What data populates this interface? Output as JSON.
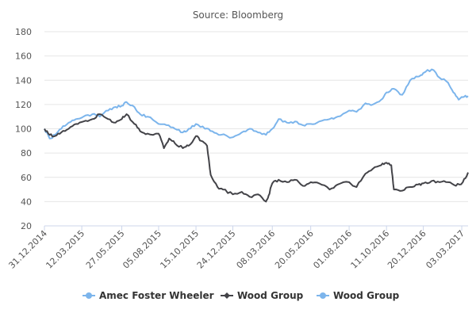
{
  "chart_data": {
    "type": "line",
    "title": "Source: Bloomberg",
    "ylim": [
      20,
      180
    ],
    "y_ticks": [
      "20",
      "40",
      "60",
      "80",
      "100",
      "120",
      "140",
      "160",
      "180"
    ],
    "x_tick_labels": [
      "31.12.2014",
      "12.03.2015",
      "27.05.2015",
      "05.08.2015",
      "15.10.2015",
      "24.12.2015",
      "08.03.2016",
      "20.05.2016",
      "01.08.2016",
      "11.10.2016",
      "20.12.2016",
      "03.03.2017"
    ],
    "x_range": [
      "2014-12-31",
      "2017-03-15"
    ],
    "grid": true,
    "legend_position": "bottom",
    "legend": [
      "Amec Foster Wheeler",
      "Wood Group",
      "Wood Group"
    ],
    "series": [
      {
        "name": "Amec Foster Wheeler",
        "color": "#7cb5ec",
        "points": [
          [
            "2014-12-31",
            100
          ],
          [
            "2015-01-10",
            92
          ],
          [
            "2015-01-20",
            95
          ],
          [
            "2015-02-01",
            100
          ],
          [
            "2015-02-15",
            105
          ],
          [
            "2015-03-01",
            108
          ],
          [
            "2015-03-15",
            110
          ],
          [
            "2015-04-01",
            112
          ],
          [
            "2015-04-15",
            110
          ],
          [
            "2015-05-01",
            115
          ],
          [
            "2015-05-15",
            118
          ],
          [
            "2015-05-27",
            119
          ],
          [
            "2015-06-05",
            122
          ],
          [
            "2015-06-20",
            118
          ],
          [
            "2015-07-01",
            112
          ],
          [
            "2015-07-15",
            110
          ],
          [
            "2015-08-05",
            104
          ],
          [
            "2015-08-20",
            103
          ],
          [
            "2015-09-05",
            100
          ],
          [
            "2015-09-20",
            97
          ],
          [
            "2015-10-01",
            100
          ],
          [
            "2015-10-15",
            104
          ],
          [
            "2015-11-01",
            100
          ],
          [
            "2015-11-15",
            98
          ],
          [
            "2015-12-01",
            95
          ],
          [
            "2015-12-24",
            93
          ],
          [
            "2016-01-10",
            97
          ],
          [
            "2016-01-25",
            100
          ],
          [
            "2016-02-10",
            97
          ],
          [
            "2016-02-25",
            95
          ],
          [
            "2016-03-08",
            100
          ],
          [
            "2016-03-20",
            108
          ],
          [
            "2016-04-05",
            105
          ],
          [
            "2016-04-20",
            106
          ],
          [
            "2016-05-05",
            103
          ],
          [
            "2016-05-20",
            104
          ],
          [
            "2016-06-05",
            106
          ],
          [
            "2016-06-25",
            108
          ],
          [
            "2016-07-10",
            110
          ],
          [
            "2016-08-01",
            115
          ],
          [
            "2016-08-15",
            114
          ],
          [
            "2016-09-01",
            121
          ],
          [
            "2016-09-15",
            120
          ],
          [
            "2016-10-01",
            124
          ],
          [
            "2016-10-11",
            130
          ],
          [
            "2016-10-25",
            133
          ],
          [
            "2016-11-10",
            128
          ],
          [
            "2016-11-25",
            140
          ],
          [
            "2016-12-10",
            143
          ],
          [
            "2016-12-20",
            146
          ],
          [
            "2017-01-05",
            149
          ],
          [
            "2017-01-20",
            142
          ],
          [
            "2017-02-05",
            138
          ],
          [
            "2017-02-15",
            130
          ],
          [
            "2017-02-25",
            124
          ],
          [
            "2017-03-05",
            126
          ],
          [
            "2017-03-15",
            127
          ]
        ]
      },
      {
        "name": "Wood Group",
        "color": "#434348",
        "points": [
          [
            "2014-12-31",
            100
          ],
          [
            "2015-01-10",
            95
          ],
          [
            "2015-01-20",
            94
          ],
          [
            "2015-02-01",
            97
          ],
          [
            "2015-02-15",
            100
          ],
          [
            "2015-03-01",
            104
          ],
          [
            "2015-03-15",
            106
          ],
          [
            "2015-04-01",
            108
          ],
          [
            "2015-04-15",
            112
          ],
          [
            "2015-05-01",
            108
          ],
          [
            "2015-05-15",
            105
          ],
          [
            "2015-05-27",
            108
          ],
          [
            "2015-06-05",
            112
          ],
          [
            "2015-06-20",
            104
          ],
          [
            "2015-07-01",
            98
          ],
          [
            "2015-07-15",
            96
          ],
          [
            "2015-08-05",
            96
          ],
          [
            "2015-08-15",
            84
          ],
          [
            "2015-08-25",
            92
          ],
          [
            "2015-09-05",
            88
          ],
          [
            "2015-09-20",
            84
          ],
          [
            "2015-10-01",
            86
          ],
          [
            "2015-10-15",
            94
          ],
          [
            "2015-10-25",
            90
          ],
          [
            "2015-11-05",
            86
          ],
          [
            "2015-11-12",
            62
          ],
          [
            "2015-11-25",
            52
          ],
          [
            "2015-12-05",
            50
          ],
          [
            "2015-12-24",
            46
          ],
          [
            "2016-01-10",
            48
          ],
          [
            "2016-01-25",
            44
          ],
          [
            "2016-02-10",
            46
          ],
          [
            "2016-02-25",
            40
          ],
          [
            "2016-03-01",
            45
          ],
          [
            "2016-03-08",
            55
          ],
          [
            "2016-03-20",
            58
          ],
          [
            "2016-04-05",
            56
          ],
          [
            "2016-04-20",
            58
          ],
          [
            "2016-05-05",
            53
          ],
          [
            "2016-05-20",
            56
          ],
          [
            "2016-06-05",
            55
          ],
          [
            "2016-06-25",
            50
          ],
          [
            "2016-07-10",
            54
          ],
          [
            "2016-08-01",
            56
          ],
          [
            "2016-08-15",
            52
          ],
          [
            "2016-09-01",
            63
          ],
          [
            "2016-09-15",
            67
          ],
          [
            "2016-10-01",
            70
          ],
          [
            "2016-10-11",
            72
          ],
          [
            "2016-10-20",
            70
          ],
          [
            "2016-10-25",
            50
          ],
          [
            "2016-11-10",
            49
          ],
          [
            "2016-11-25",
            52
          ],
          [
            "2016-12-10",
            54
          ],
          [
            "2016-12-20",
            55
          ],
          [
            "2017-01-05",
            57
          ],
          [
            "2017-01-20",
            56
          ],
          [
            "2017-02-05",
            56
          ],
          [
            "2017-02-20",
            53
          ],
          [
            "2017-03-05",
            56
          ],
          [
            "2017-03-15",
            64
          ]
        ]
      }
    ]
  }
}
